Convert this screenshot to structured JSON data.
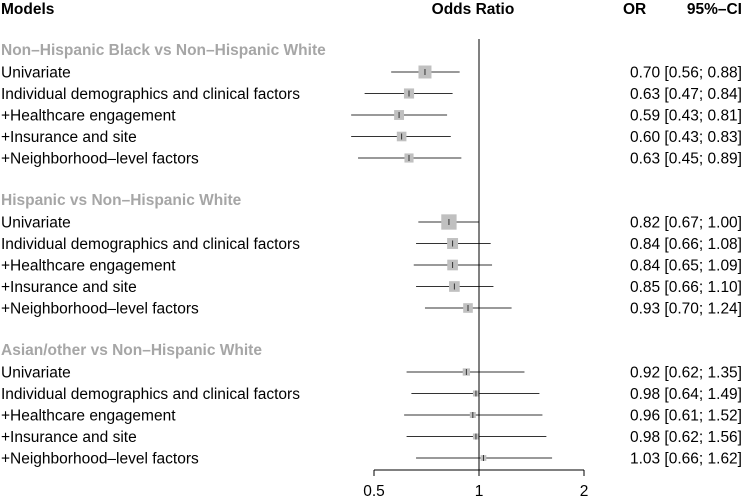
{
  "chart_data": {
    "type": "forest",
    "header": {
      "models": "Models",
      "odds_ratio": "Odds Ratio",
      "or": "OR",
      "ci": "95%–CI"
    },
    "x_scale": "log",
    "xlim": [
      0.5,
      2
    ],
    "reference_line": 1,
    "x_ticks": [
      {
        "value": 0.5,
        "label": "0.5"
      },
      {
        "value": 1,
        "label": "1"
      },
      {
        "value": 2,
        "label": "2"
      }
    ],
    "groups": [
      {
        "title": "Non–Hispanic Black vs Non–Hispanic White",
        "rows": [
          {
            "label": "Univariate",
            "or": 0.7,
            "lo": 0.56,
            "hi": 0.88,
            "weight": 1.0,
            "estimate_text": "0.70 [0.56; 0.88]"
          },
          {
            "label": "Individual demographics and clinical factors",
            "or": 0.63,
            "lo": 0.47,
            "hi": 0.84,
            "weight": 0.78,
            "estimate_text": "0.63 [0.47; 0.84]"
          },
          {
            "label": "+Healthcare engagement",
            "or": 0.59,
            "lo": 0.43,
            "hi": 0.81,
            "weight": 0.76,
            "estimate_text": "0.59 [0.43; 0.81]"
          },
          {
            "label": "+Insurance and site",
            "or": 0.6,
            "lo": 0.43,
            "hi": 0.83,
            "weight": 0.74,
            "estimate_text": "0.60 [0.43; 0.83]"
          },
          {
            "label": "+Neighborhood–level factors",
            "or": 0.63,
            "lo": 0.45,
            "hi": 0.89,
            "weight": 0.7,
            "estimate_text": "0.63 [0.45; 0.89]"
          }
        ]
      },
      {
        "title": "Hispanic vs Non–Hispanic White",
        "rows": [
          {
            "label": "Univariate",
            "or": 0.82,
            "lo": 0.67,
            "hi": 1.0,
            "weight": 1.18,
            "estimate_text": "0.82 [0.67; 1.00]"
          },
          {
            "label": "Individual demographics and clinical factors",
            "or": 0.84,
            "lo": 0.66,
            "hi": 1.08,
            "weight": 0.84,
            "estimate_text": "0.84 [0.66; 1.08]"
          },
          {
            "label": "+Healthcare engagement",
            "or": 0.84,
            "lo": 0.65,
            "hi": 1.09,
            "weight": 0.82,
            "estimate_text": "0.84 [0.65; 1.09]"
          },
          {
            "label": "+Insurance and site",
            "or": 0.85,
            "lo": 0.66,
            "hi": 1.1,
            "weight": 0.82,
            "estimate_text": "0.85 [0.66; 1.10]"
          },
          {
            "label": "+Neighborhood–level factors",
            "or": 0.93,
            "lo": 0.7,
            "hi": 1.24,
            "weight": 0.74,
            "estimate_text": "0.93 [0.70; 1.24]"
          }
        ]
      },
      {
        "title": "Asian/other vs Non–Hispanic White",
        "rows": [
          {
            "label": "Univariate",
            "or": 0.92,
            "lo": 0.62,
            "hi": 1.35,
            "weight": 0.56,
            "estimate_text": "0.92 [0.62; 1.35]"
          },
          {
            "label": "Individual demographics and clinical factors",
            "or": 0.98,
            "lo": 0.64,
            "hi": 1.49,
            "weight": 0.46,
            "estimate_text": "0.98 [0.64; 1.49]"
          },
          {
            "label": "+Healthcare engagement",
            "or": 0.96,
            "lo": 0.61,
            "hi": 1.52,
            "weight": 0.46,
            "estimate_text": "0.96 [0.61; 1.52]"
          },
          {
            "label": "+Insurance and site",
            "or": 0.98,
            "lo": 0.62,
            "hi": 1.56,
            "weight": 0.46,
            "estimate_text": "0.98 [0.62; 1.56]"
          },
          {
            "label": "+Neighborhood–level factors",
            "or": 1.03,
            "lo": 0.66,
            "hi": 1.62,
            "weight": 0.44,
            "estimate_text": "1.03 [0.66; 1.62]"
          }
        ]
      }
    ],
    "colors": {
      "group_title": "#a6a6a6",
      "box": "#c0c0c0",
      "line": "#333333",
      "axis": "#000000"
    }
  }
}
